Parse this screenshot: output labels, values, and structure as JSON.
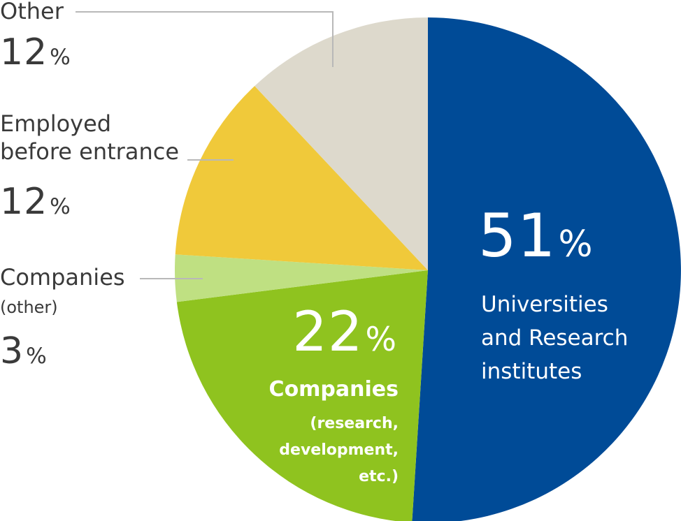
{
  "chart_data": {
    "type": "pie",
    "slices": [
      {
        "key": "universities",
        "value": 51,
        "pct_text": "51",
        "unit": "%",
        "label_lines": [
          "Universities",
          "and Research",
          "institutes"
        ],
        "color": "#004b97"
      },
      {
        "key": "companies_rd",
        "value": 22,
        "pct_text": "22",
        "unit": "%",
        "label_lines": [
          "Companies",
          "(research,",
          "development,",
          "etc.)"
        ],
        "color": "#8fc31f"
      },
      {
        "key": "companies_other",
        "value": 3,
        "pct_text": "3",
        "unit": "%",
        "label_lines": [
          "Companies",
          "(other)"
        ],
        "color": "#bfe082"
      },
      {
        "key": "employed_before",
        "value": 12,
        "pct_text": "12",
        "unit": "%",
        "label_lines": [
          "Employed",
          "before entrance"
        ],
        "color": "#f0c93a"
      },
      {
        "key": "other",
        "value": 12,
        "pct_text": "12",
        "unit": "%",
        "label_lines": [
          "Other"
        ],
        "color": "#ddd9cc"
      }
    ],
    "start_direction": "12 o'clock",
    "direction": "clockwise",
    "leader_line_color": "#b8b8b8"
  }
}
